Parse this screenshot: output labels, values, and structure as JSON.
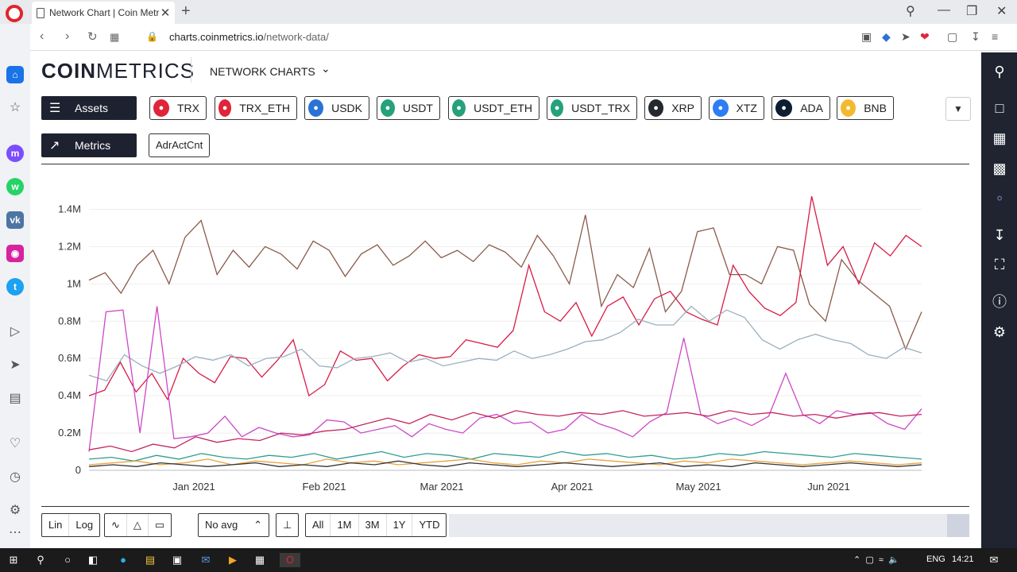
{
  "browser": {
    "tab_title": "Network Chart | Coin Metri",
    "url_domain": "charts.coinmetrics.io",
    "url_path": "/network-data/",
    "new_tab": "+",
    "tab_close": "✕",
    "window_controls": [
      "—",
      "❐",
      "✕"
    ]
  },
  "header": {
    "logo_bold": "COIN",
    "logo_light": "METRICS",
    "nav_label": "NETWORK CHARTS"
  },
  "assets_button": "Assets",
  "metrics_button": "Metrics",
  "assets": [
    {
      "label": "TRX",
      "icon": "tron-icon",
      "color": "#e0253a"
    },
    {
      "label": "TRX_ETH",
      "icon": "tron-icon",
      "color": "#e0253a"
    },
    {
      "label": "USDK",
      "icon": "usdk-icon",
      "color": "#2b72d6"
    },
    {
      "label": "USDT",
      "icon": "tether-icon",
      "color": "#26a17b"
    },
    {
      "label": "USDT_ETH",
      "icon": "tether-icon",
      "color": "#26a17b"
    },
    {
      "label": "USDT_TRX",
      "icon": "tether-icon",
      "color": "#26a17b"
    },
    {
      "label": "XRP",
      "icon": "xrp-icon",
      "color": "#23292f"
    },
    {
      "label": "XTZ",
      "icon": "tezos-icon",
      "color": "#2c7df7"
    },
    {
      "label": "ADA",
      "icon": "cardano-icon",
      "color": "#0d1e30"
    },
    {
      "label": "BNB",
      "icon": "binance-icon",
      "color": "#f3ba2f"
    }
  ],
  "metric": "AdrActCnt",
  "chart_data": {
    "type": "line",
    "y_ticks": [
      "0",
      "0.2M",
      "0.4M",
      "0.6M",
      "0.8M",
      "1M",
      "1.2M",
      "1.4M"
    ],
    "x_ticks": [
      "Jan 2021",
      "Feb 2021",
      "Mar 2021",
      "Apr 2021",
      "May 2021",
      "Jun 2021"
    ],
    "ylim": [
      0,
      1500000
    ],
    "grid": true,
    "series": [
      {
        "color": "#8b5a4a",
        "values": [
          1020000,
          1060000,
          950000,
          1100000,
          1180000,
          1000000,
          1250000,
          1340000,
          1050000,
          1180000,
          1090000,
          1200000,
          1160000,
          1080000,
          1230000,
          1180000,
          1040000,
          1160000,
          1210000,
          1100000,
          1150000,
          1230000,
          1140000,
          1180000,
          1120000,
          1210000,
          1170000,
          1090000,
          1260000,
          1150000,
          1000000,
          1370000,
          880000,
          1050000,
          980000,
          1190000,
          850000,
          960000,
          1280000,
          1300000,
          1050000,
          1050000,
          1000000,
          1200000,
          1180000,
          890000,
          800000,
          1130000,
          1020000,
          950000,
          880000,
          650000,
          850000
        ]
      },
      {
        "color": "#d81b45",
        "values": [
          400000,
          430000,
          580000,
          420000,
          520000,
          380000,
          600000,
          520000,
          470000,
          610000,
          600000,
          500000,
          590000,
          700000,
          400000,
          460000,
          640000,
          590000,
          600000,
          480000,
          560000,
          620000,
          600000,
          610000,
          700000,
          680000,
          660000,
          750000,
          1100000,
          850000,
          800000,
          900000,
          720000,
          880000,
          930000,
          780000,
          920000,
          960000,
          850000,
          810000,
          780000,
          1100000,
          960000,
          870000,
          830000,
          900000,
          1470000,
          1100000,
          1200000,
          1000000,
          1220000,
          1150000,
          1260000,
          1200000
        ]
      },
      {
        "color": "#9bb0bd",
        "values": [
          510000,
          480000,
          620000,
          560000,
          520000,
          560000,
          610000,
          590000,
          620000,
          560000,
          600000,
          610000,
          650000,
          560000,
          550000,
          600000,
          610000,
          630000,
          580000,
          600000,
          560000,
          580000,
          600000,
          590000,
          640000,
          600000,
          620000,
          650000,
          690000,
          700000,
          740000,
          810000,
          780000,
          780000,
          880000,
          800000,
          860000,
          820000,
          700000,
          650000,
          700000,
          730000,
          700000,
          680000,
          620000,
          600000,
          660000,
          630000
        ]
      },
      {
        "color": "#cc47c8",
        "values": [
          100000,
          850000,
          860000,
          200000,
          880000,
          170000,
          180000,
          200000,
          290000,
          180000,
          230000,
          200000,
          180000,
          190000,
          270000,
          260000,
          200000,
          220000,
          240000,
          180000,
          250000,
          220000,
          200000,
          280000,
          300000,
          250000,
          260000,
          200000,
          220000,
          300000,
          250000,
          220000,
          180000,
          260000,
          310000,
          710000,
          300000,
          250000,
          280000,
          240000,
          290000,
          520000,
          300000,
          250000,
          320000,
          300000,
          310000,
          250000,
          220000,
          330000
        ]
      },
      {
        "color": "#c2265f",
        "values": [
          110000,
          130000,
          100000,
          140000,
          120000,
          180000,
          150000,
          170000,
          160000,
          200000,
          190000,
          210000,
          220000,
          250000,
          280000,
          250000,
          300000,
          270000,
          310000,
          280000,
          320000,
          300000,
          290000,
          310000,
          300000,
          320000,
          290000,
          300000,
          310000,
          290000,
          320000,
          300000,
          310000,
          290000,
          300000,
          280000,
          300000,
          310000,
          290000,
          300000
        ]
      },
      {
        "color": "#2f9e8f",
        "values": [
          60000,
          70000,
          50000,
          80000,
          60000,
          90000,
          70000,
          60000,
          80000,
          70000,
          90000,
          60000,
          80000,
          100000,
          70000,
          90000,
          80000,
          60000,
          90000,
          80000,
          70000,
          100000,
          80000,
          90000,
          70000,
          80000,
          60000,
          70000,
          90000,
          80000,
          100000,
          90000,
          80000,
          70000,
          90000,
          80000,
          70000,
          60000
        ]
      },
      {
        "color": "#e8a23a",
        "values": [
          30000,
          40000,
          50000,
          30000,
          40000,
          60000,
          30000,
          50000,
          40000,
          30000,
          60000,
          40000,
          50000,
          30000,
          40000,
          50000,
          60000,
          40000,
          30000,
          50000,
          40000,
          60000,
          50000,
          40000,
          30000,
          50000,
          40000,
          60000,
          50000,
          40000,
          30000,
          40000,
          50000,
          40000,
          30000,
          40000
        ]
      },
      {
        "color": "#333333",
        "values": [
          20000,
          30000,
          20000,
          40000,
          30000,
          20000,
          30000,
          40000,
          20000,
          30000,
          20000,
          40000,
          30000,
          50000,
          30000,
          20000,
          40000,
          30000,
          20000,
          30000,
          40000,
          30000,
          20000,
          30000,
          40000,
          20000,
          30000,
          20000,
          40000,
          30000,
          20000,
          30000,
          40000,
          30000,
          20000,
          30000
        ]
      }
    ]
  },
  "controls": {
    "scale": [
      "Lin",
      "Log"
    ],
    "avg": "No avg",
    "ranges": [
      "All",
      "1M",
      "3M",
      "1Y",
      "YTD"
    ]
  },
  "taskbar": {
    "lang": "ENG",
    "time": "14:21"
  }
}
